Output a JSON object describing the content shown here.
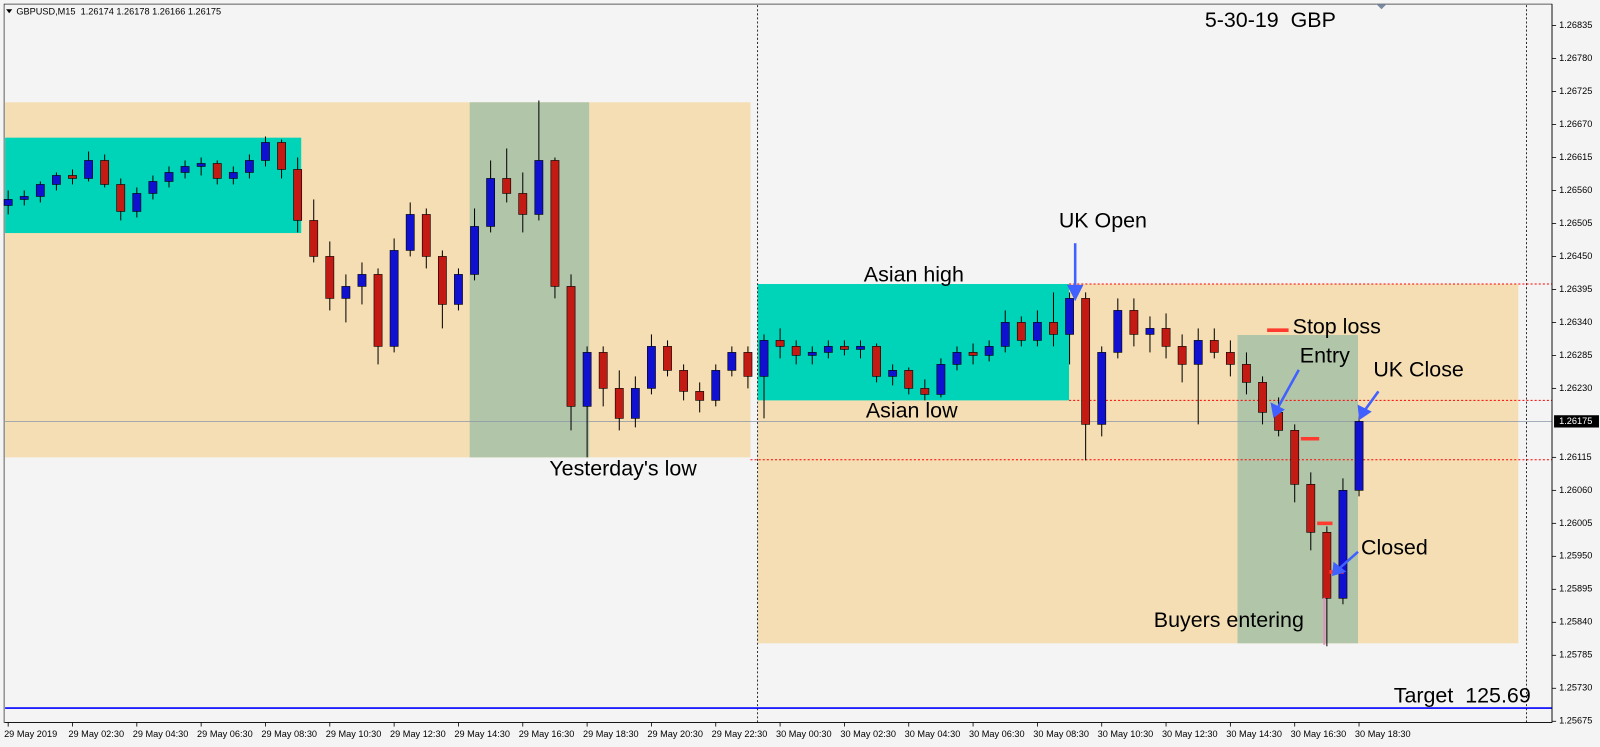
{
  "chart_data": {
    "type": "candlestick",
    "title": "GBPUSD,M15  1.26174 1.26178 1.26166 1.26175",
    "categories": [
      "29 May 2019",
      null,
      null,
      null,
      "29 May 02:30",
      null,
      null,
      null,
      "29 May 04:30",
      null,
      null,
      null,
      "29 May 06:30",
      null,
      null,
      null,
      "29 May 08:30",
      null,
      null,
      null,
      "29 May 10:30",
      null,
      null,
      null,
      "29 May 12:30",
      null,
      null,
      null,
      "29 May 14:30",
      null,
      null,
      null,
      "29 May 16:30",
      null,
      null,
      null,
      "29 May 18:30",
      null,
      null,
      null,
      "29 May 20:30",
      null,
      null,
      null,
      "29 May 22:30",
      null,
      null,
      null,
      "30 May 00:30",
      null,
      null,
      null,
      "30 May 02:30",
      null,
      null,
      null,
      "30 May 04:30",
      null,
      null,
      null,
      "30 May 06:30",
      null,
      null,
      null,
      "30 May 08:30",
      null,
      null,
      null,
      "30 May 10:30",
      null,
      null,
      null,
      "30 May 12:30",
      null,
      null,
      null,
      "30 May 14:30",
      null,
      null,
      null,
      "30 May 16:30",
      null,
      null,
      null,
      "30 May 18:30"
    ],
    "open": [
      1.26535,
      1.26545,
      1.2655,
      1.2657,
      1.26585,
      1.2658,
      1.2661,
      1.2657,
      1.26525,
      1.26555,
      1.26575,
      1.2659,
      1.266,
      1.26605,
      1.2658,
      1.2659,
      1.2661,
      1.2664,
      1.26595,
      1.2651,
      1.2645,
      1.2638,
      1.264,
      1.2642,
      1.263,
      1.2646,
      1.2652,
      1.2645,
      1.2637,
      1.2642,
      1.265,
      1.2658,
      1.26555,
      1.2652,
      1.2661,
      1.264,
      1.262,
      1.2629,
      1.2623,
      1.2618,
      1.2623,
      1.263,
      1.2626,
      1.26225,
      1.2621,
      1.2626,
      1.2629,
      1.2625,
      1.2631,
      1.263,
      1.26285,
      1.2629,
      1.263,
      1.26295,
      1.263,
      1.2625,
      1.2626,
      1.2623,
      1.2622,
      1.2627,
      1.2629,
      1.26285,
      1.263,
      1.2634,
      1.2631,
      1.2634,
      1.2632,
      1.2638,
      1.2617,
      1.2629,
      1.2636,
      1.2632,
      1.2633,
      1.263,
      1.2627,
      1.2631,
      1.2629,
      1.2627,
      1.2624,
      1.2619,
      1.2616,
      1.2607,
      1.2599,
      1.2588,
      1.2606
    ],
    "high": [
      1.2656,
      1.2656,
      1.26575,
      1.2659,
      1.26595,
      1.26625,
      1.2662,
      1.2658,
      1.26565,
      1.26585,
      1.266,
      1.2661,
      1.26615,
      1.2661,
      1.266,
      1.2662,
      1.2665,
      1.26645,
      1.26615,
      1.26545,
      1.26475,
      1.2642,
      1.2644,
      1.2643,
      1.2648,
      1.2654,
      1.2653,
      1.2646,
      1.2643,
      1.2653,
      1.2661,
      1.2663,
      1.2659,
      1.2671,
      1.26615,
      1.2642,
      1.263,
      1.263,
      1.2626,
      1.2625,
      1.2632,
      1.2631,
      1.2627,
      1.2624,
      1.2627,
      1.263,
      1.263,
      1.2632,
      1.2633,
      1.2631,
      1.263,
      1.2631,
      1.2631,
      1.2631,
      1.26305,
      1.2627,
      1.26265,
      1.26245,
      1.2628,
      1.263,
      1.26305,
      1.2631,
      1.2636,
      1.2635,
      1.2636,
      1.2639,
      1.2639,
      1.2639,
      1.263,
      1.2638,
      1.2638,
      1.2635,
      1.26355,
      1.2632,
      1.2633,
      1.2633,
      1.2631,
      1.2629,
      1.2625,
      1.26215,
      1.2617,
      1.2609,
      1.26,
      1.2608,
      1.26185
    ],
    "low": [
      1.2652,
      1.26535,
      1.2654,
      1.2656,
      1.2657,
      1.26575,
      1.26565,
      1.2651,
      1.26515,
      1.26545,
      1.26565,
      1.2658,
      1.26585,
      1.2657,
      1.2657,
      1.2658,
      1.266,
      1.2658,
      1.2649,
      1.2644,
      1.2636,
      1.2634,
      1.2637,
      1.2627,
      1.2629,
      1.2645,
      1.2643,
      1.2633,
      1.2636,
      1.2641,
      1.2649,
      1.2654,
      1.2649,
      1.2651,
      1.2638,
      1.2616,
      1.26115,
      1.262,
      1.2616,
      1.26165,
      1.2622,
      1.2625,
      1.2621,
      1.2619,
      1.262,
      1.2625,
      1.2623,
      1.2618,
      1.2628,
      1.2627,
      1.2627,
      1.2628,
      1.26285,
      1.2628,
      1.2624,
      1.26235,
      1.2622,
      1.2621,
      1.26215,
      1.2626,
      1.2627,
      1.26275,
      1.2629,
      1.263,
      1.263,
      1.263,
      1.2627,
      1.2611,
      1.2615,
      1.2628,
      1.263,
      1.2629,
      1.2628,
      1.2624,
      1.2617,
      1.2628,
      1.2625,
      1.2622,
      1.2617,
      1.2615,
      1.2604,
      1.2596,
      1.258,
      1.2587,
      1.2605
    ],
    "close": [
      1.26545,
      1.2655,
      1.2657,
      1.26585,
      1.2658,
      1.2661,
      1.2657,
      1.26525,
      1.26555,
      1.26575,
      1.2659,
      1.266,
      1.26605,
      1.2658,
      1.2659,
      1.2661,
      1.2664,
      1.26595,
      1.2651,
      1.2645,
      1.2638,
      1.264,
      1.2642,
      1.263,
      1.2646,
      1.2652,
      1.2645,
      1.2637,
      1.2642,
      1.265,
      1.2658,
      1.26555,
      1.2652,
      1.2661,
      1.264,
      1.262,
      1.2629,
      1.2623,
      1.2618,
      1.2623,
      1.263,
      1.2626,
      1.26225,
      1.2621,
      1.2626,
      1.2629,
      1.2625,
      1.2631,
      1.263,
      1.26285,
      1.2629,
      1.263,
      1.26295,
      1.263,
      1.2625,
      1.2626,
      1.2623,
      1.2622,
      1.2627,
      1.2629,
      1.26285,
      1.263,
      1.2634,
      1.2631,
      1.2634,
      1.2632,
      1.2638,
      1.2617,
      1.2629,
      1.2636,
      1.2632,
      1.2633,
      1.263,
      1.2627,
      1.2631,
      1.2629,
      1.2627,
      1.2624,
      1.2619,
      1.2616,
      1.2607,
      1.2599,
      1.2588,
      1.2606,
      1.26175
    ],
    "up_color": "#1010d0",
    "down_color": "#c41a14",
    "ylim": [
      1.25673,
      1.26869
    ],
    "yticks": [
      1.26835,
      {
        "value": 1.2678,
        "label": "1.26780"
      },
      1.26725,
      {
        "value": 1.2667,
        "label": "1.26670"
      },
      1.26615,
      {
        "value": 1.2656,
        "label": "1.26560"
      },
      1.26505,
      {
        "value": 1.2645,
        "label": "1.26450"
      },
      1.26395,
      {
        "value": 1.2634,
        "label": "1.26340"
      },
      1.26285,
      {
        "value": 1.2623,
        "label": "1.26230"
      },
      1.26115,
      {
        "value": 1.2606,
        "label": "1.26060"
      },
      1.26005,
      {
        "value": 1.2595,
        "label": "1.25950"
      },
      1.25895,
      {
        "value": 1.2584,
        "label": "1.25840"
      },
      1.25785,
      {
        "value": 1.2573,
        "label": "1.25730"
      },
      1.25675
    ],
    "grid": false,
    "last_price": 1.26175,
    "zones": [
      {
        "low": 1.26115,
        "high": 1.26707,
        "color": "#f5deb3"
      },
      {
        "low": 1.26489,
        "high": 1.26648,
        "color": "#00d4b8"
      },
      {
        "low": 1.26115,
        "high": 1.26707,
        "color": "#b1c6a8"
      },
      {
        "low": 1.25805,
        "high": 1.26404,
        "color": "#f5deb3"
      },
      {
        "low": 1.2621,
        "high": 1.26404,
        "color": "#00d4b8"
      },
      {
        "low": 1.25805,
        "high": 1.26319,
        "color": "#b1c6a8"
      }
    ],
    "levels": [
      {
        "value": 1.26404,
        "color": "#ff0000"
      },
      {
        "value": 1.2621,
        "color": "#ff0000"
      },
      {
        "value": 1.26111,
        "color": "#ff0000"
      },
      {
        "value": 1.25697,
        "color": "#0000ff"
      }
    ],
    "markers": [
      {
        "value": 1.26327,
        "color": "#ff3b30"
      },
      {
        "value": 1.26146,
        "color": "#ff3b30"
      },
      {
        "value": 1.26005,
        "color": "#ff3b30"
      },
      {
        "value": 1.25924,
        "color": "#ff3b30"
      }
    ],
    "annotations": [
      "5-30-19  GBP",
      "UK Open",
      "Asian high",
      "Asian low",
      "Yesterday's low",
      "Stop loss",
      "Entry",
      "UK Close",
      "Closed",
      "Buyers entering",
      "Target  125.69"
    ]
  }
}
